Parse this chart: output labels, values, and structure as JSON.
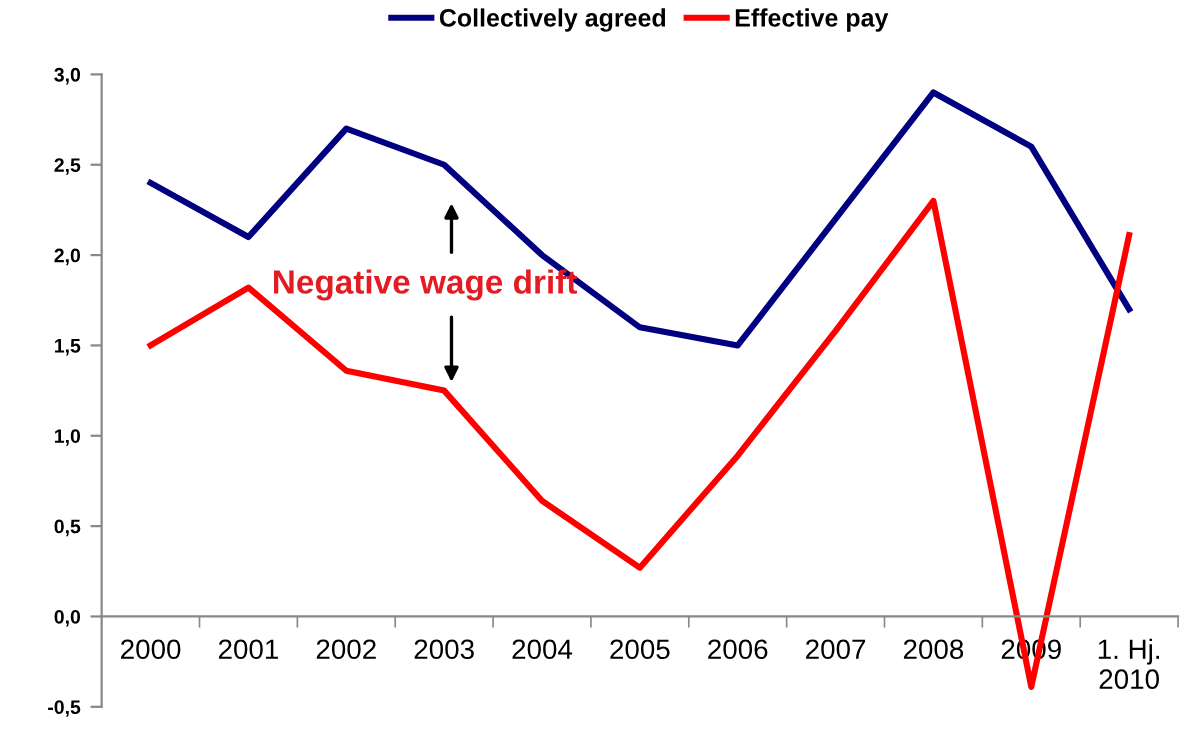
{
  "chart_data": {
    "type": "line",
    "categories": [
      "2000",
      "2001",
      "2002",
      "2003",
      "2004",
      "2005",
      "2006",
      "2007",
      "2008",
      "2009",
      "1. Hj.\n2010"
    ],
    "series": [
      {
        "name": "Collectively agreed",
        "color": "#000080",
        "values": [
          2.4,
          2.1,
          2.7,
          2.5,
          2.0,
          1.6,
          1.5,
          2.2,
          2.9,
          2.6,
          1.7
        ]
      },
      {
        "name": "Effective pay",
        "color": "#ff0000",
        "values": [
          1.5,
          1.82,
          1.36,
          1.25,
          0.64,
          0.27,
          0.89,
          1.58,
          2.3,
          -0.39,
          2.11
        ]
      }
    ],
    "ylim": [
      -0.5,
      3.0
    ],
    "yticks": [
      {
        "value": -0.5,
        "label": "-0,5"
      },
      {
        "value": 0,
        "label": "0,0"
      },
      {
        "value": 0.5,
        "label": "0,5"
      },
      {
        "value": 1.0,
        "label": "1,0"
      },
      {
        "value": 1.5,
        "label": "1,5"
      },
      {
        "value": 2.0,
        "label": "2,0"
      },
      {
        "value": 2.5,
        "label": "2,5"
      },
      {
        "value": 3.0,
        "label": "3,0"
      }
    ],
    "annotations": [
      "Negative wage drift"
    ],
    "legend": "top",
    "grid": false,
    "marker": "none",
    "line_style": "solid"
  }
}
